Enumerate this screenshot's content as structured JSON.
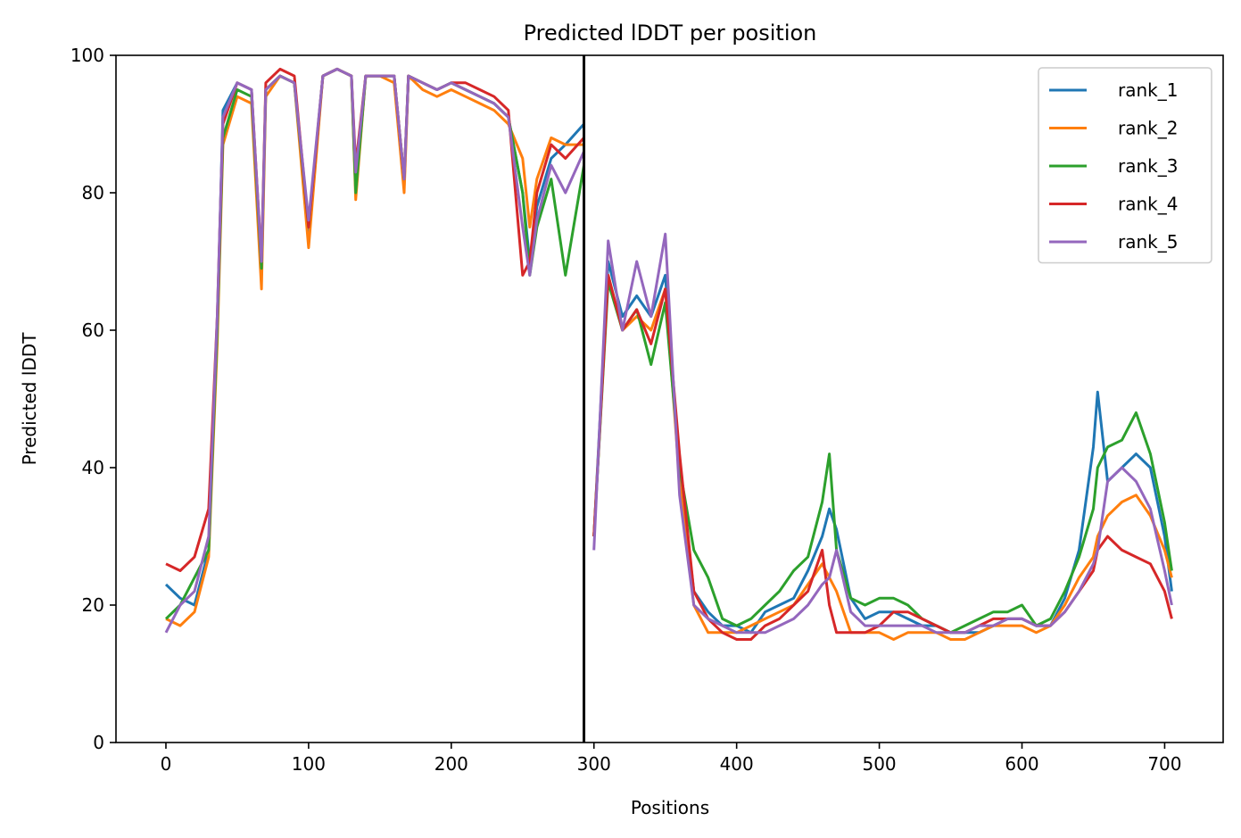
{
  "chart_data": {
    "type": "line",
    "title": "Predicted lDDT per position",
    "xlabel": "Positions",
    "ylabel": "Predicted lDDT",
    "xlim": [
      -35,
      741
    ],
    "ylim": [
      0,
      100
    ],
    "xticks": [
      0,
      100,
      200,
      300,
      400,
      500,
      600,
      700
    ],
    "yticks": [
      0,
      20,
      40,
      60,
      80,
      100
    ],
    "grid": false,
    "legend_position": "top-right",
    "vlines": [
      {
        "x": 293,
        "color": "#000000"
      }
    ],
    "x": [
      0,
      10,
      20,
      30,
      36,
      40,
      50,
      60,
      67,
      70,
      80,
      90,
      100,
      110,
      120,
      130,
      133,
      140,
      150,
      160,
      167,
      170,
      180,
      190,
      200,
      210,
      220,
      230,
      240,
      250,
      255,
      260,
      270,
      280,
      293,
      293.5,
      300,
      310,
      320,
      330,
      340,
      350,
      360,
      370,
      380,
      390,
      400,
      410,
      420,
      430,
      440,
      450,
      460,
      465,
      470,
      480,
      490,
      500,
      510,
      520,
      530,
      540,
      550,
      560,
      570,
      580,
      590,
      600,
      610,
      620,
      630,
      640,
      650,
      653,
      660,
      670,
      680,
      690,
      700,
      705
    ],
    "series": [
      {
        "name": "rank_1",
        "color": "#1f77b4",
        "values": [
          23,
          21,
          20,
          28,
          60,
          92,
          96,
          95,
          68,
          95,
          97,
          96,
          74,
          97,
          98,
          97,
          80,
          97,
          97,
          97,
          81,
          97,
          96,
          95,
          96,
          95,
          94,
          93,
          91,
          80,
          70,
          78,
          85,
          87,
          90,
          null,
          30,
          70,
          62,
          65,
          62,
          68,
          40,
          22,
          19,
          17,
          17,
          16,
          19,
          20,
          21,
          25,
          30,
          34,
          31,
          21,
          18,
          19,
          19,
          18,
          17,
          17,
          16,
          16,
          16,
          17,
          18,
          18,
          17,
          17,
          21,
          28,
          43,
          51,
          38,
          40,
          42,
          40,
          30,
          22
        ]
      },
      {
        "name": "rank_2",
        "color": "#ff7f0e",
        "values": [
          18,
          17,
          19,
          27,
          58,
          87,
          94,
          93,
          66,
          94,
          97,
          96,
          72,
          97,
          98,
          97,
          79,
          97,
          97,
          96,
          80,
          97,
          95,
          94,
          95,
          94,
          93,
          92,
          90,
          85,
          75,
          82,
          88,
          87,
          87,
          null,
          30,
          68,
          60,
          62,
          60,
          66,
          38,
          20,
          16,
          16,
          16,
          17,
          18,
          19,
          20,
          23,
          26,
          24,
          22,
          16,
          16,
          16,
          15,
          16,
          16,
          16,
          15,
          15,
          16,
          17,
          17,
          17,
          16,
          17,
          20,
          24,
          27,
          30,
          33,
          35,
          36,
          33,
          28,
          24
        ]
      },
      {
        "name": "rank_3",
        "color": "#2ca02c",
        "values": [
          18,
          20,
          24,
          28,
          60,
          88,
          95,
          94,
          69,
          95,
          97,
          96,
          75,
          97,
          98,
          97,
          80,
          97,
          97,
          97,
          82,
          97,
          96,
          95,
          96,
          95,
          94,
          93,
          91,
          80,
          68,
          75,
          82,
          68,
          84,
          null,
          30,
          67,
          60,
          63,
          55,
          64,
          40,
          28,
          24,
          18,
          17,
          18,
          20,
          22,
          25,
          27,
          35,
          42,
          28,
          21,
          20,
          21,
          21,
          20,
          18,
          17,
          16,
          17,
          18,
          19,
          19,
          20,
          17,
          18,
          22,
          27,
          34,
          40,
          43,
          44,
          48,
          42,
          32,
          25
        ]
      },
      {
        "name": "rank_4",
        "color": "#d62728",
        "values": [
          26,
          25,
          27,
          34,
          62,
          90,
          96,
          95,
          70,
          96,
          98,
          97,
          75,
          97,
          98,
          97,
          84,
          97,
          97,
          97,
          82,
          97,
          96,
          95,
          96,
          96,
          95,
          94,
          92,
          68,
          70,
          80,
          87,
          85,
          88,
          null,
          30,
          68,
          60,
          63,
          58,
          66,
          42,
          22,
          18,
          16,
          15,
          15,
          17,
          18,
          20,
          22,
          28,
          20,
          16,
          16,
          16,
          17,
          19,
          19,
          18,
          17,
          16,
          16,
          17,
          18,
          18,
          18,
          17,
          17,
          19,
          22,
          25,
          28,
          30,
          28,
          27,
          26,
          22,
          18
        ]
      },
      {
        "name": "rank_5",
        "color": "#9467bd",
        "values": [
          16,
          20,
          22,
          30,
          62,
          91,
          96,
          95,
          70,
          95,
          97,
          96,
          76,
          97,
          98,
          97,
          83,
          97,
          97,
          97,
          82,
          97,
          96,
          95,
          96,
          95,
          94,
          93,
          91,
          75,
          68,
          76,
          84,
          80,
          86,
          null,
          28,
          73,
          60,
          70,
          62,
          74,
          36,
          20,
          18,
          17,
          16,
          16,
          16,
          17,
          18,
          20,
          23,
          24,
          28,
          19,
          17,
          17,
          17,
          17,
          17,
          16,
          16,
          16,
          17,
          17,
          18,
          18,
          17,
          17,
          19,
          22,
          26,
          28,
          38,
          40,
          38,
          34,
          25,
          20
        ]
      }
    ]
  }
}
